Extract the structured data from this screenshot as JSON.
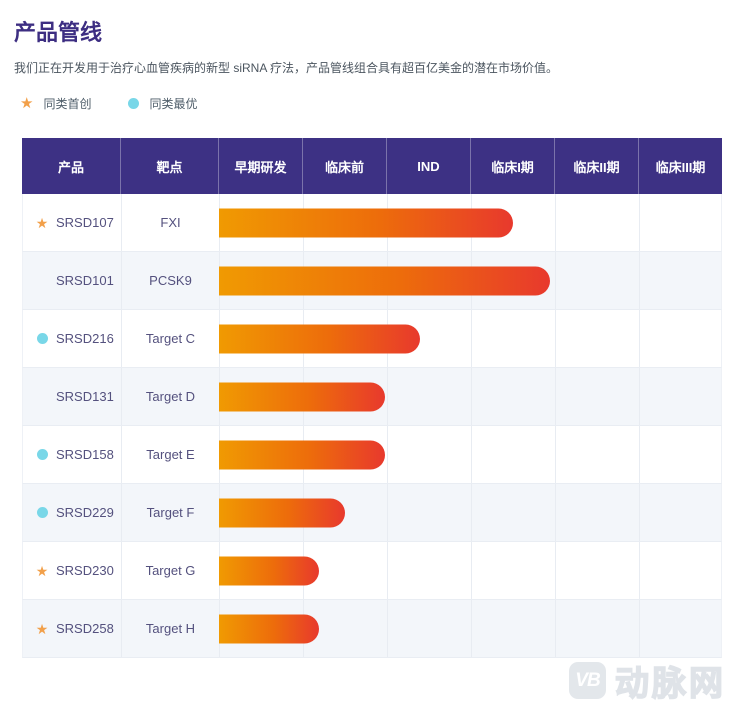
{
  "page": {
    "title": "产品管线",
    "subtitle": "我们正在开发用于治疗心血管疾病的新型 siRNA 疗法，产品管线组合具有超百亿美金的潜在市场价值。"
  },
  "icons": {
    "star_glyph": "★"
  },
  "legend": {
    "first_in_class": {
      "label": "同类首创",
      "icon": "star-icon",
      "color": "#f2a04a"
    },
    "best_in_class": {
      "label": "同类最优",
      "icon": "dot-icon",
      "color": "#79d7e8"
    }
  },
  "table": {
    "columns": [
      "产品",
      "靶点",
      "早期研发",
      "临床前",
      "IND",
      "临床I期",
      "临床II期",
      "临床III期"
    ],
    "rows": [
      {
        "product": "SRSD107",
        "target": "FXI",
        "badge": "first-in-class",
        "progress_pct": 58.5,
        "stage_reached": "临床I期"
      },
      {
        "product": "SRSD101",
        "target": "PCSK9",
        "badge": "",
        "progress_pct": 66,
        "stage_reached": "临床I期"
      },
      {
        "product": "SRSD216",
        "target": "Target C",
        "badge": "best-in-class",
        "progress_pct": 40,
        "stage_reached": "IND"
      },
      {
        "product": "SRSD131",
        "target": "Target D",
        "badge": "",
        "progress_pct": 33,
        "stage_reached": "临床前"
      },
      {
        "product": "SRSD158",
        "target": "Target E",
        "badge": "best-in-class",
        "progress_pct": 33,
        "stage_reached": "临床前"
      },
      {
        "product": "SRSD229",
        "target": "Target F",
        "badge": "best-in-class",
        "progress_pct": 25,
        "stage_reached": "临床前"
      },
      {
        "product": "SRSD230",
        "target": "Target G",
        "badge": "first-in-class",
        "progress_pct": 20,
        "stage_reached": "临床前"
      },
      {
        "product": "SRSD258",
        "target": "Target H",
        "badge": "first-in-class",
        "progress_pct": 20,
        "stage_reached": "临床前"
      }
    ]
  },
  "watermark": {
    "logo_text": "VB",
    "brand": "动脉网"
  },
  "colors": {
    "header_bg": "#3d3184",
    "title": "#3d2e82",
    "bar_gradient_start": "#f09a02",
    "bar_gradient_end": "#e8392d",
    "first_in_class_star": "#f2a04a",
    "best_in_class_dot": "#79d7e8",
    "row_alt_bg": "#f3f6fa",
    "row_text": "#54517e",
    "watermark_gray": "#e3e7eb"
  },
  "chart_data": {
    "type": "bar",
    "title": "产品管线",
    "subtitle": "我们正在开发用于治疗心血管疾病的新型 siRNA 疗法，产品管线组合具有超百亿美金的潜在市场价值。",
    "stages": [
      "早期研发",
      "临床前",
      "IND",
      "临床I期",
      "临床II期",
      "临床III期"
    ],
    "legend": [
      {
        "label": "同类首创",
        "marker": "star"
      },
      {
        "label": "同类最优",
        "marker": "dot"
      }
    ],
    "bars": [
      {
        "product": "SRSD107",
        "target": "FXI",
        "classification": "同类首创",
        "progress_stage": "临床I期",
        "track_pct": 58.5
      },
      {
        "product": "SRSD101",
        "target": "PCSK9",
        "classification": null,
        "progress_stage": "临床I期",
        "track_pct": 66
      },
      {
        "product": "SRSD216",
        "target": "Target C",
        "classification": "同类最优",
        "progress_stage": "IND",
        "track_pct": 40
      },
      {
        "product": "SRSD131",
        "target": "Target D",
        "classification": null,
        "progress_stage": "临床前",
        "track_pct": 33
      },
      {
        "product": "SRSD158",
        "target": "Target E",
        "classification": "同类最优",
        "progress_stage": "临床前",
        "track_pct": 33
      },
      {
        "product": "SRSD229",
        "target": "Target F",
        "classification": "同类最优",
        "progress_stage": "临床前",
        "track_pct": 25
      },
      {
        "product": "SRSD230",
        "target": "Target G",
        "classification": "同类首创",
        "progress_stage": "临床前",
        "track_pct": 20
      },
      {
        "product": "SRSD258",
        "target": "Target H",
        "classification": "同类首创",
        "progress_stage": "临床前",
        "track_pct": 20
      }
    ],
    "bar_gradient": [
      "#f09a02",
      "#e8392d"
    ],
    "grid": true,
    "orientation": "horizontal"
  }
}
